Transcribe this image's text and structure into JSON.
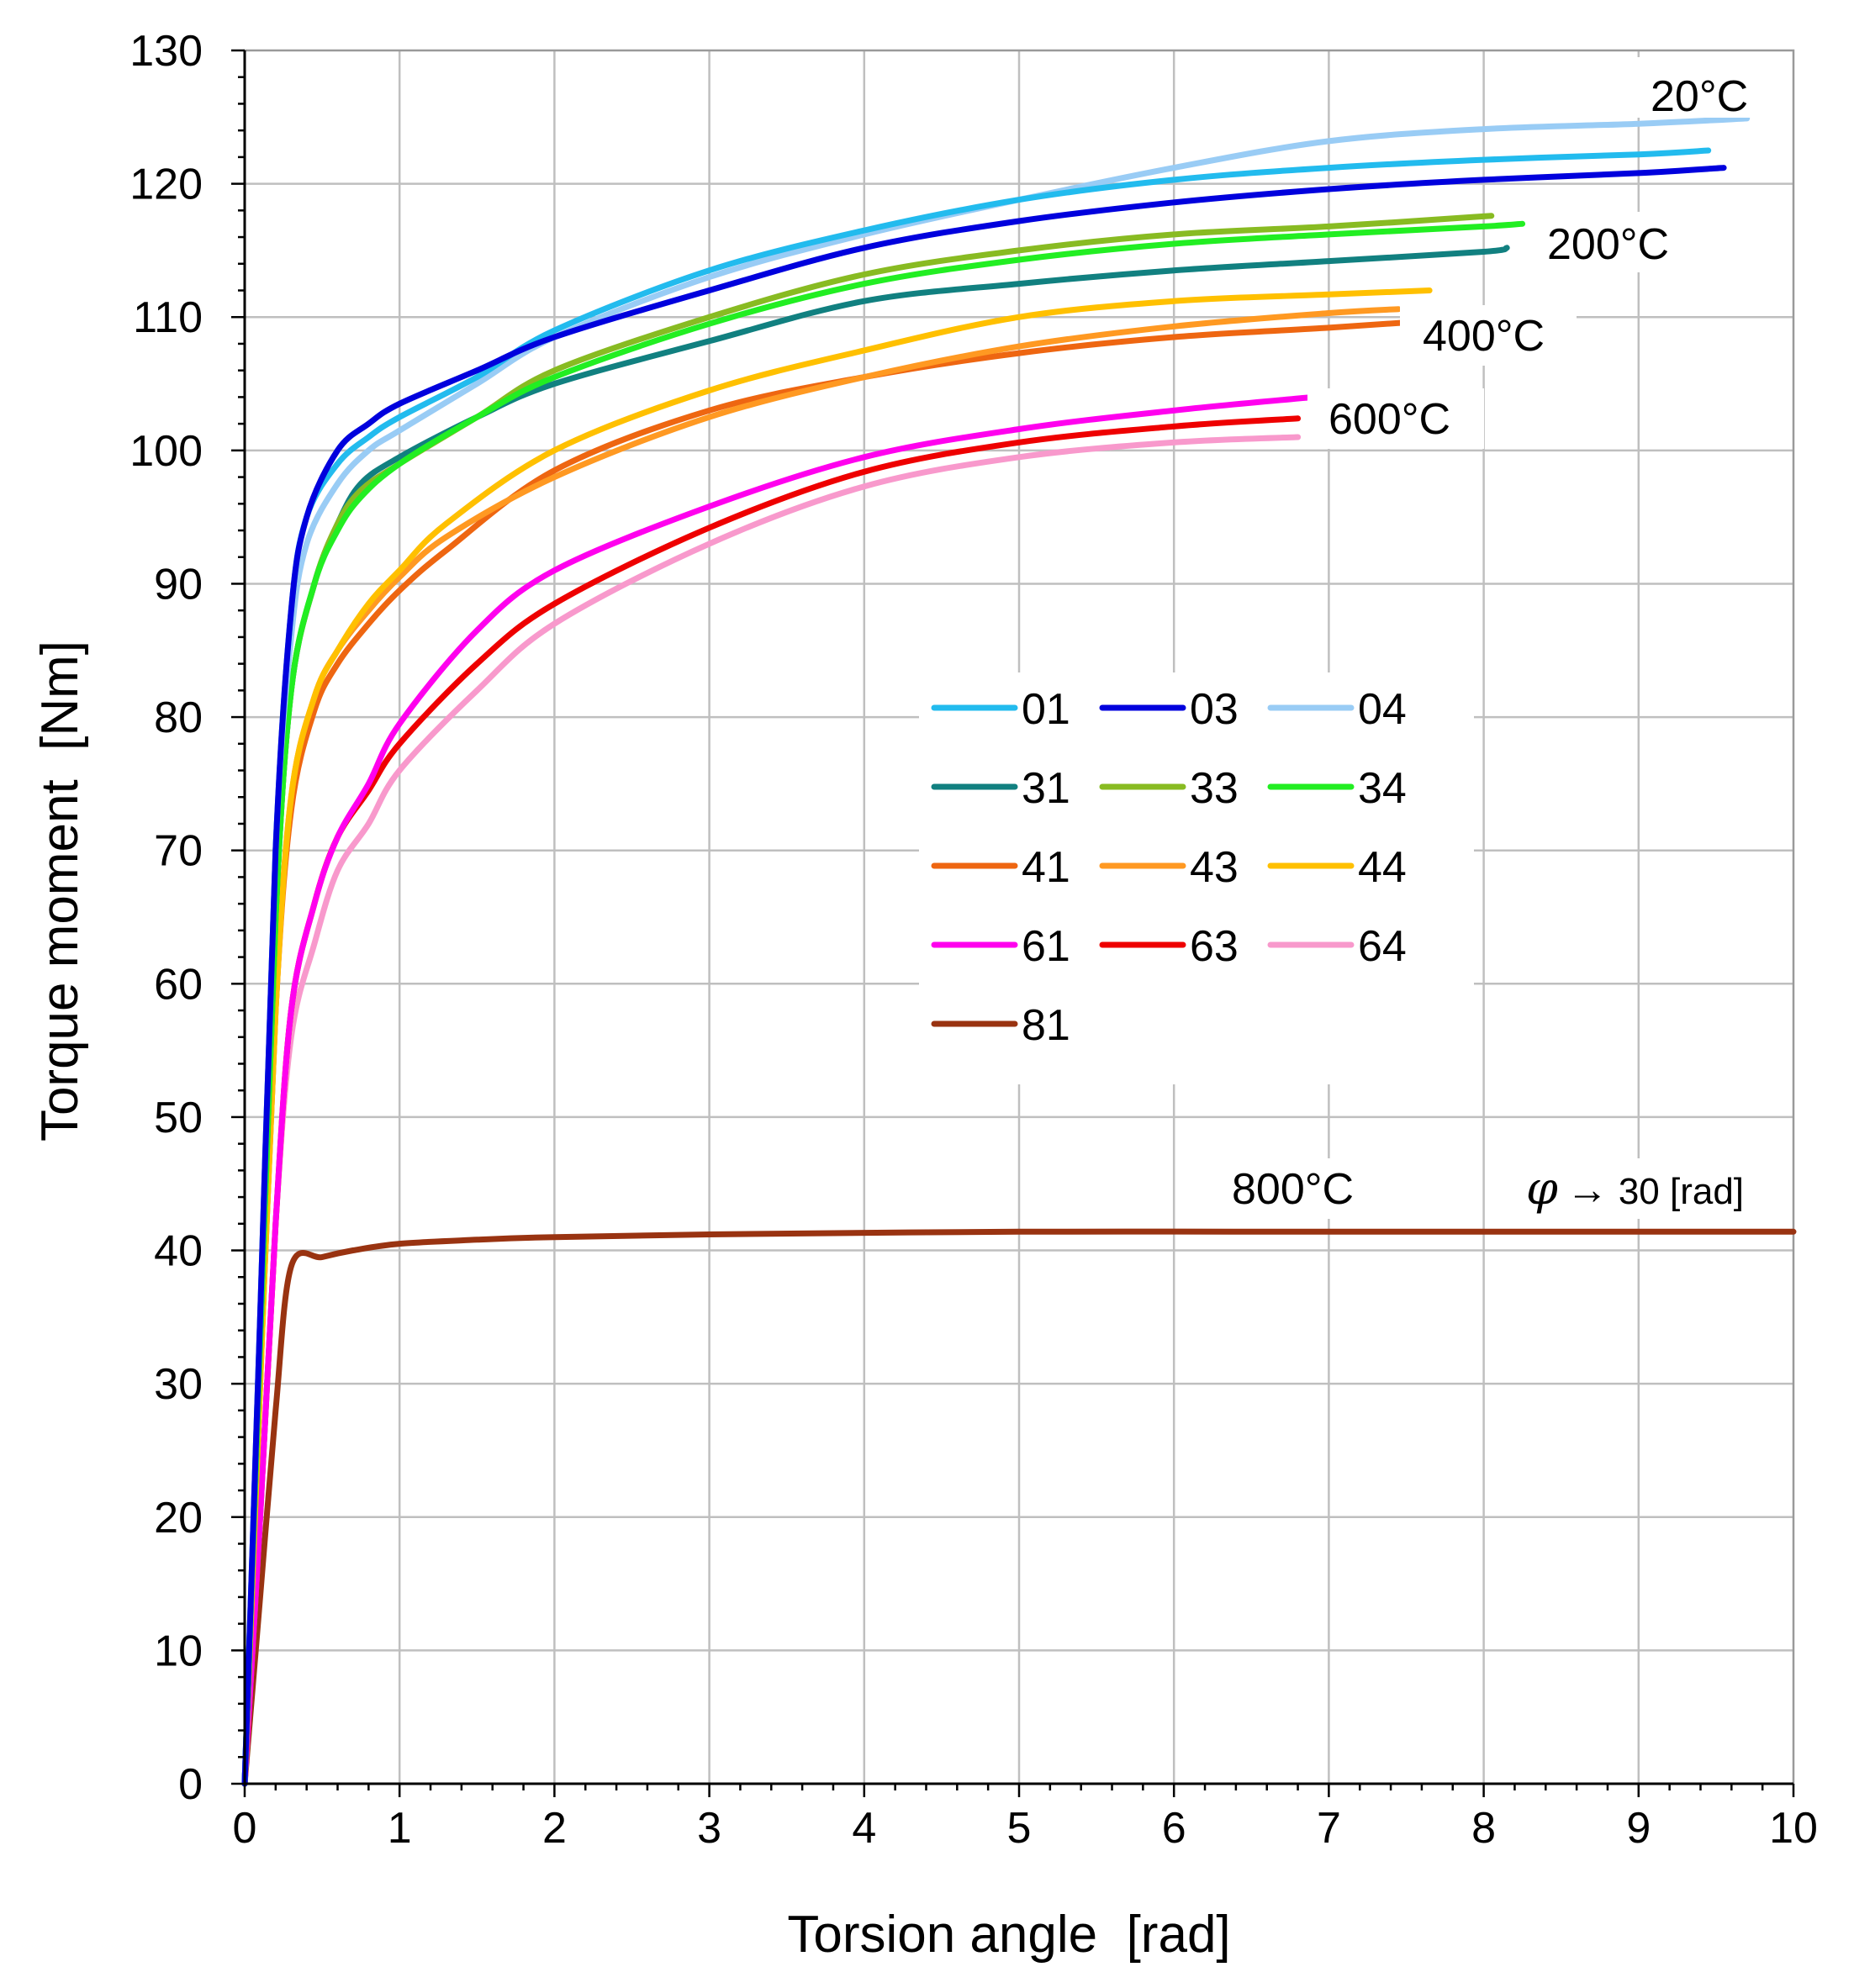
{
  "chart_data": {
    "type": "line",
    "title": "",
    "xlabel": "Torsion angle  [rad]",
    "ylabel": "Torque moment  [Nm]",
    "xlim": [
      0,
      10
    ],
    "ylim": [
      0,
      130
    ],
    "x_ticks": [
      0,
      1,
      2,
      3,
      4,
      5,
      6,
      7,
      8,
      9,
      10
    ],
    "y_ticks": [
      0,
      10,
      20,
      30,
      40,
      50,
      60,
      70,
      80,
      90,
      100,
      110,
      120,
      130
    ],
    "grid": true,
    "legend_position": "center",
    "annotations": [
      "20°C",
      "200°C",
      "400°C",
      "600°C",
      "800°C"
    ],
    "note": {
      "symbol": "φ",
      "arrow": "→",
      "text": "30 [rad]"
    },
    "series": [
      {
        "name": "01",
        "color": "#22bbee",
        "x": [
          0,
          0.1,
          0.2,
          0.3,
          0.4,
          0.6,
          0.8,
          1,
          1.5,
          2,
          3,
          4,
          5,
          6,
          7,
          8,
          9,
          9.45
        ],
        "y": [
          0,
          35,
          70,
          88,
          95,
          99,
          101,
          102.5,
          105.5,
          109,
          113.5,
          116.5,
          118.8,
          120.3,
          121.2,
          121.8,
          122.2,
          122.5
        ]
      },
      {
        "name": "03",
        "color": "#0000dd",
        "x": [
          0,
          0.1,
          0.2,
          0.3,
          0.4,
          0.6,
          0.8,
          1,
          1.5,
          2,
          3,
          4,
          5,
          6,
          7,
          8,
          9,
          9.55
        ],
        "y": [
          0,
          35,
          70,
          88,
          95,
          100,
          102,
          103.5,
          106,
          108.5,
          112,
          115.2,
          117.2,
          118.6,
          119.6,
          120.3,
          120.8,
          121.2
        ]
      },
      {
        "name": "04",
        "color": "#99ccf5",
        "x": [
          0,
          0.1,
          0.2,
          0.3,
          0.4,
          0.6,
          0.8,
          1,
          1.5,
          2,
          3,
          4,
          5,
          6,
          7,
          8,
          9,
          9.7
        ],
        "y": [
          0,
          35,
          70,
          86,
          93,
          97.5,
          100,
          101.5,
          105,
          108.5,
          113,
          116.2,
          118.8,
          121.2,
          123.2,
          124.1,
          124.5,
          124.9
        ]
      },
      {
        "name": "31",
        "color": "#118080",
        "x": [
          0,
          0.1,
          0.2,
          0.3,
          0.45,
          0.6,
          0.75,
          1,
          1.5,
          2,
          3,
          4,
          5,
          6,
          7,
          8,
          8.15
        ],
        "y": [
          0,
          33,
          65,
          82,
          90,
          94.5,
          97.5,
          99.5,
          102.5,
          105,
          108.2,
          111.2,
          112.5,
          113.5,
          114.2,
          114.9,
          115.2
        ]
      },
      {
        "name": "33",
        "color": "#88bb22",
        "x": [
          0,
          0.1,
          0.2,
          0.3,
          0.45,
          0.6,
          0.75,
          1,
          1.5,
          2,
          3,
          4,
          5,
          6,
          7,
          8.05
        ],
        "y": [
          0,
          33,
          65,
          82,
          90,
          94.5,
          97,
          99,
          102.5,
          106,
          110,
          113.2,
          115,
          116.2,
          116.8,
          117.6
        ]
      },
      {
        "name": "34",
        "color": "#22ee22",
        "x": [
          0,
          0.1,
          0.2,
          0.3,
          0.45,
          0.6,
          0.75,
          1,
          1.5,
          2,
          3,
          4,
          5,
          6,
          7,
          8,
          8.25
        ],
        "y": [
          0,
          33,
          65,
          82,
          90,
          94,
          96.5,
          99,
          102.5,
          105.5,
          109.5,
          112.5,
          114.3,
          115.5,
          116.2,
          116.8,
          117
        ]
      },
      {
        "name": "41",
        "color": "#ee6611",
        "x": [
          0,
          0.1,
          0.2,
          0.3,
          0.45,
          0.6,
          0.8,
          1,
          1.3,
          2,
          3,
          4,
          5,
          6,
          7,
          7.5
        ],
        "y": [
          0,
          30,
          58,
          73,
          80.5,
          84,
          87,
          89.5,
          92.5,
          98.5,
          103,
          105.5,
          107.3,
          108.5,
          109.2,
          109.6
        ]
      },
      {
        "name": "43",
        "color": "#ff9922",
        "x": [
          0,
          0.1,
          0.2,
          0.3,
          0.45,
          0.6,
          0.8,
          1,
          1.3,
          2,
          3,
          4,
          5,
          6,
          7,
          7.45
        ],
        "y": [
          0,
          30,
          58,
          74,
          81.5,
          85,
          88,
          90.5,
          93.5,
          98,
          102.5,
          105.5,
          107.8,
          109.3,
          110.3,
          110.6
        ]
      },
      {
        "name": "44",
        "color": "#ffc000",
        "x": [
          0,
          0.1,
          0.2,
          0.3,
          0.45,
          0.6,
          0.8,
          1,
          1.3,
          2,
          3,
          4,
          5,
          6,
          7,
          7.65
        ],
        "y": [
          0,
          30,
          58,
          74,
          81.5,
          85,
          88.5,
          91,
          94.5,
          100,
          104.5,
          107.5,
          110,
          111.2,
          111.7,
          112
        ]
      },
      {
        "name": "61",
        "color": "#ff00ee",
        "x": [
          0,
          0.1,
          0.2,
          0.3,
          0.45,
          0.6,
          0.8,
          1,
          1.5,
          2,
          3,
          4,
          5,
          6,
          6.9
        ],
        "y": [
          0,
          20,
          42,
          58,
          66,
          71,
          75,
          79.5,
          86.5,
          91,
          95.8,
          99.5,
          101.6,
          103,
          104
        ]
      },
      {
        "name": "63",
        "color": "#ee0000",
        "x": [
          0,
          0.1,
          0.2,
          0.3,
          0.45,
          0.6,
          0.8,
          1,
          1.5,
          2,
          3,
          4,
          5,
          6,
          6.8
        ],
        "y": [
          0,
          20,
          42,
          58,
          66,
          71,
          74.5,
          78,
          84,
          88.5,
          94.2,
          98.4,
          100.6,
          101.8,
          102.4
        ]
      },
      {
        "name": "64",
        "color": "#f899cc",
        "x": [
          0,
          0.1,
          0.2,
          0.3,
          0.45,
          0.6,
          0.8,
          1,
          1.5,
          2,
          3,
          4,
          5,
          6,
          6.8
        ],
        "y": [
          0,
          20,
          42,
          56,
          63,
          68.5,
          72,
          76,
          82,
          87,
          93,
          97.3,
          99.5,
          100.6,
          101
        ]
      },
      {
        "name": "81",
        "color": "#993311",
        "x": [
          0,
          0.1,
          0.2,
          0.3,
          0.5,
          0.7,
          1,
          1.5,
          2,
          3,
          5,
          7,
          9,
          10
        ],
        "y": [
          0,
          14,
          28,
          38.8,
          39.5,
          40,
          40.5,
          40.8,
          41,
          41.2,
          41.4,
          41.4,
          41.4,
          41.4
        ]
      }
    ],
    "legend": {
      "entries": [
        "01",
        "03",
        "04",
        "31",
        "33",
        "34",
        "41",
        "43",
        "44",
        "61",
        "63",
        "64",
        "81"
      ],
      "columns": 3
    }
  }
}
